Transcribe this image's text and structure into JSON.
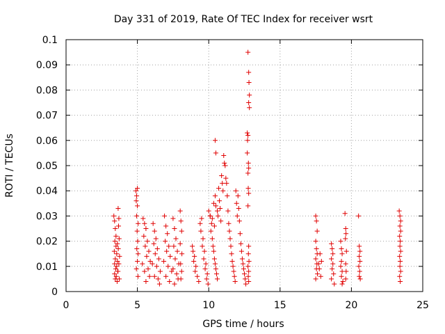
{
  "chart_data": {
    "type": "scatter",
    "title": "Day 331 of 2019, Rate Of TEC Index for receiver wsrt",
    "xlabel": "GPS time / hours",
    "ylabel": "ROTI / TECUs",
    "xlim": [
      0,
      25
    ],
    "ylim": [
      0,
      0.1
    ],
    "x_ticks": [
      0,
      5,
      10,
      15,
      20,
      25
    ],
    "x_tick_labels": [
      "0",
      "5",
      "10",
      "15",
      "20",
      "25"
    ],
    "y_ticks": [
      0,
      0.01,
      0.02,
      0.03,
      0.04,
      0.05,
      0.06,
      0.07,
      0.08,
      0.09,
      0.1
    ],
    "y_tick_labels": [
      "0",
      "0.01",
      "0.02",
      "0.03",
      "0.04",
      "0.05",
      "0.06",
      "0.07",
      "0.08",
      "0.09",
      "0.1"
    ],
    "grid": true,
    "marker": "+",
    "color": "#e00000",
    "series": [
      {
        "values": [
          [
            3.35,
            0.03
          ],
          [
            3.4,
            0.028
          ],
          [
            3.45,
            0.025
          ],
          [
            3.5,
            0.022
          ],
          [
            3.42,
            0.02
          ],
          [
            3.5,
            0.018
          ],
          [
            3.38,
            0.016
          ],
          [
            3.55,
            0.015
          ],
          [
            3.45,
            0.013
          ],
          [
            3.6,
            0.012
          ],
          [
            3.4,
            0.011
          ],
          [
            3.55,
            0.01
          ],
          [
            3.48,
            0.009
          ],
          [
            3.62,
            0.008
          ],
          [
            3.4,
            0.007
          ],
          [
            3.52,
            0.006
          ],
          [
            3.45,
            0.005
          ],
          [
            3.58,
            0.004
          ],
          [
            3.65,
            0.033
          ],
          [
            3.7,
            0.029
          ],
          [
            3.68,
            0.026
          ],
          [
            3.72,
            0.021
          ],
          [
            3.66,
            0.017
          ],
          [
            3.75,
            0.014
          ],
          [
            3.7,
            0.011
          ],
          [
            3.64,
            0.008
          ],
          [
            3.73,
            0.005
          ],
          [
            3.6,
            0.019
          ],
          [
            4.9,
            0.04
          ],
          [
            4.95,
            0.038
          ],
          [
            5.0,
            0.041
          ],
          [
            4.92,
            0.036
          ],
          [
            5.0,
            0.034
          ],
          [
            4.95,
            0.03
          ],
          [
            5.05,
            0.027
          ],
          [
            4.98,
            0.024
          ],
          [
            5.02,
            0.02
          ],
          [
            4.96,
            0.017
          ],
          [
            5.05,
            0.015
          ],
          [
            5.0,
            0.012
          ],
          [
            4.93,
            0.009
          ],
          [
            5.04,
            0.006
          ],
          [
            5.4,
            0.029
          ],
          [
            5.5,
            0.027
          ],
          [
            5.6,
            0.025
          ],
          [
            5.45,
            0.022
          ],
          [
            5.7,
            0.02
          ],
          [
            5.55,
            0.018
          ],
          [
            5.8,
            0.016
          ],
          [
            5.65,
            0.014
          ],
          [
            5.9,
            0.012
          ],
          [
            5.35,
            0.011
          ],
          [
            5.75,
            0.009
          ],
          [
            5.5,
            0.008
          ],
          [
            5.85,
            0.006
          ],
          [
            5.6,
            0.004
          ],
          [
            6.1,
            0.027
          ],
          [
            6.2,
            0.024
          ],
          [
            6.3,
            0.021
          ],
          [
            6.15,
            0.019
          ],
          [
            6.4,
            0.017
          ],
          [
            6.25,
            0.015
          ],
          [
            6.5,
            0.013
          ],
          [
            6.05,
            0.011
          ],
          [
            6.35,
            0.01
          ],
          [
            6.6,
            0.008
          ],
          [
            6.2,
            0.006
          ],
          [
            6.45,
            0.005
          ],
          [
            6.55,
            0.003
          ],
          [
            6.9,
            0.03
          ],
          [
            7.0,
            0.026
          ],
          [
            7.1,
            0.023
          ],
          [
            6.95,
            0.02
          ],
          [
            7.2,
            0.018
          ],
          [
            7.05,
            0.016
          ],
          [
            7.3,
            0.014
          ],
          [
            6.85,
            0.012
          ],
          [
            7.15,
            0.01
          ],
          [
            7.4,
            0.008
          ],
          [
            7.0,
            0.006
          ],
          [
            7.25,
            0.004
          ],
          [
            7.5,
            0.029
          ],
          [
            7.6,
            0.025
          ],
          [
            7.7,
            0.021
          ],
          [
            7.55,
            0.018
          ],
          [
            7.8,
            0.016
          ],
          [
            7.65,
            0.013
          ],
          [
            7.9,
            0.011
          ],
          [
            7.5,
            0.009
          ],
          [
            7.75,
            0.007
          ],
          [
            7.85,
            0.005
          ],
          [
            7.6,
            0.003
          ],
          [
            8.0,
            0.032
          ],
          [
            8.05,
            0.028
          ],
          [
            8.1,
            0.024
          ],
          [
            8.0,
            0.019
          ],
          [
            8.12,
            0.015
          ],
          [
            8.03,
            0.011
          ],
          [
            8.1,
            0.008
          ],
          [
            8.05,
            0.005
          ],
          [
            8.85,
            0.018
          ],
          [
            8.9,
            0.016
          ],
          [
            9.0,
            0.014
          ],
          [
            8.95,
            0.012
          ],
          [
            9.1,
            0.01
          ],
          [
            9.05,
            0.008
          ],
          [
            9.2,
            0.006
          ],
          [
            9.3,
            0.004
          ],
          [
            9.4,
            0.027
          ],
          [
            9.5,
            0.029
          ],
          [
            9.45,
            0.024
          ],
          [
            9.6,
            0.021
          ],
          [
            9.55,
            0.018
          ],
          [
            9.7,
            0.016
          ],
          [
            9.65,
            0.013
          ],
          [
            9.8,
            0.011
          ],
          [
            9.75,
            0.009
          ],
          [
            9.9,
            0.007
          ],
          [
            9.85,
            0.005
          ],
          [
            9.95,
            0.003
          ],
          [
            10.0,
            0.032
          ],
          [
            10.1,
            0.03
          ],
          [
            10.2,
            0.027
          ],
          [
            10.15,
            0.024
          ],
          [
            10.25,
            0.021
          ],
          [
            10.3,
            0.018
          ],
          [
            10.35,
            0.016
          ],
          [
            10.4,
            0.013
          ],
          [
            10.45,
            0.011
          ],
          [
            10.5,
            0.009
          ],
          [
            10.55,
            0.007
          ],
          [
            10.6,
            0.005
          ],
          [
            10.35,
            0.035
          ],
          [
            10.45,
            0.038
          ],
          [
            10.5,
            0.034
          ],
          [
            10.6,
            0.032
          ],
          [
            10.65,
            0.03
          ],
          [
            10.7,
            0.041
          ],
          [
            10.75,
            0.036
          ],
          [
            10.8,
            0.033
          ],
          [
            10.85,
            0.028
          ],
          [
            10.9,
            0.046
          ],
          [
            10.95,
            0.043
          ],
          [
            11.0,
            0.04
          ],
          [
            11.05,
            0.054
          ],
          [
            11.1,
            0.051
          ],
          [
            11.15,
            0.05
          ],
          [
            11.2,
            0.045
          ],
          [
            11.25,
            0.043
          ],
          [
            11.3,
            0.038
          ],
          [
            11.35,
            0.032
          ],
          [
            11.4,
            0.027
          ],
          [
            11.45,
            0.024
          ],
          [
            11.5,
            0.021
          ],
          [
            11.55,
            0.018
          ],
          [
            11.6,
            0.015
          ],
          [
            11.65,
            0.012
          ],
          [
            11.7,
            0.01
          ],
          [
            11.75,
            0.008
          ],
          [
            11.8,
            0.006
          ],
          [
            11.85,
            0.004
          ],
          [
            10.45,
            0.06
          ],
          [
            10.5,
            0.055
          ],
          [
            10.1,
            0.03
          ],
          [
            10.25,
            0.029
          ],
          [
            10.4,
            0.026
          ],
          [
            11.9,
            0.04
          ],
          [
            11.95,
            0.035
          ],
          [
            12.0,
            0.03
          ],
          [
            12.05,
            0.038
          ],
          [
            12.1,
            0.033
          ],
          [
            12.15,
            0.028
          ],
          [
            12.2,
            0.023
          ],
          [
            12.25,
            0.019
          ],
          [
            12.3,
            0.016
          ],
          [
            12.35,
            0.013
          ],
          [
            12.4,
            0.011
          ],
          [
            12.45,
            0.009
          ],
          [
            12.5,
            0.007
          ],
          [
            12.55,
            0.005
          ],
          [
            12.6,
            0.003
          ],
          [
            12.75,
            0.095
          ],
          [
            12.8,
            0.087
          ],
          [
            12.82,
            0.083
          ],
          [
            12.85,
            0.078
          ],
          [
            12.8,
            0.075
          ],
          [
            12.85,
            0.073
          ],
          [
            12.7,
            0.063
          ],
          [
            12.75,
            0.062
          ],
          [
            12.72,
            0.06
          ],
          [
            12.7,
            0.055
          ],
          [
            12.78,
            0.051
          ],
          [
            12.8,
            0.049
          ],
          [
            12.75,
            0.047
          ],
          [
            12.77,
            0.041
          ],
          [
            12.8,
            0.039
          ],
          [
            12.75,
            0.034
          ],
          [
            12.8,
            0.018
          ],
          [
            12.78,
            0.015
          ],
          [
            12.82,
            0.012
          ],
          [
            12.75,
            0.01
          ],
          [
            12.8,
            0.008
          ],
          [
            12.77,
            0.006
          ],
          [
            12.8,
            0.004
          ],
          [
            17.5,
            0.03
          ],
          [
            17.55,
            0.028
          ],
          [
            17.6,
            0.024
          ],
          [
            17.5,
            0.02
          ],
          [
            17.55,
            0.017
          ],
          [
            17.6,
            0.015
          ],
          [
            17.5,
            0.013
          ],
          [
            17.58,
            0.011
          ],
          [
            17.55,
            0.009
          ],
          [
            17.62,
            0.007
          ],
          [
            17.5,
            0.005
          ],
          [
            17.7,
            0.011
          ],
          [
            17.8,
            0.015
          ],
          [
            17.75,
            0.009
          ],
          [
            17.85,
            0.006
          ],
          [
            17.9,
            0.012
          ],
          [
            18.6,
            0.019
          ],
          [
            18.65,
            0.017
          ],
          [
            18.7,
            0.015
          ],
          [
            18.6,
            0.013
          ],
          [
            18.7,
            0.011
          ],
          [
            18.65,
            0.009
          ],
          [
            18.75,
            0.007
          ],
          [
            18.6,
            0.005
          ],
          [
            18.8,
            0.003
          ],
          [
            19.25,
            0.02
          ],
          [
            19.3,
            0.017
          ],
          [
            19.35,
            0.015
          ],
          [
            19.3,
            0.012
          ],
          [
            19.25,
            0.01
          ],
          [
            19.35,
            0.008
          ],
          [
            19.3,
            0.006
          ],
          [
            19.4,
            0.004
          ],
          [
            19.35,
            0.003
          ],
          [
            19.55,
            0.031
          ],
          [
            19.6,
            0.025
          ],
          [
            19.62,
            0.023
          ],
          [
            19.58,
            0.021
          ],
          [
            19.65,
            0.016
          ],
          [
            19.6,
            0.011
          ],
          [
            19.63,
            0.008
          ],
          [
            19.6,
            0.005
          ],
          [
            20.5,
            0.03
          ],
          [
            20.55,
            0.018
          ],
          [
            20.6,
            0.016
          ],
          [
            20.55,
            0.014
          ],
          [
            20.6,
            0.012
          ],
          [
            20.52,
            0.01
          ],
          [
            20.58,
            0.008
          ],
          [
            20.55,
            0.006
          ],
          [
            20.62,
            0.005
          ],
          [
            23.35,
            0.032
          ],
          [
            23.4,
            0.03
          ],
          [
            23.45,
            0.028
          ],
          [
            23.4,
            0.026
          ],
          [
            23.45,
            0.024
          ],
          [
            23.38,
            0.022
          ],
          [
            23.42,
            0.02
          ],
          [
            23.4,
            0.018
          ],
          [
            23.45,
            0.016
          ],
          [
            23.38,
            0.014
          ],
          [
            23.42,
            0.012
          ],
          [
            23.4,
            0.01
          ],
          [
            23.45,
            0.008
          ],
          [
            23.38,
            0.006
          ],
          [
            23.42,
            0.004
          ]
        ]
      }
    ]
  }
}
